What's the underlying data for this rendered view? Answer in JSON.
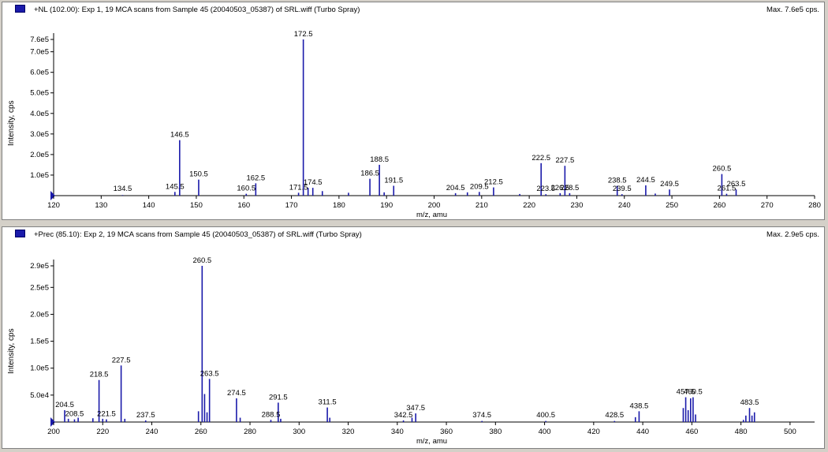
{
  "chart_data": [
    {
      "type": "bar",
      "title": "+NL (102.00): Exp 1, 19 MCA scans from Sample 45 (20040503_05387) of SRL.wiff (Turbo Spray)",
      "max_label": "Max. 7.6e5 cps.",
      "xlabel": "m/z, amu",
      "ylabel": "Intensity, cps",
      "xlim": [
        120,
        280
      ],
      "ylim": [
        0,
        760000
      ],
      "x_ticks": [
        120,
        130,
        140,
        150,
        160,
        170,
        180,
        190,
        200,
        210,
        220,
        230,
        240,
        250,
        260,
        270,
        280
      ],
      "y_ticks": [
        {
          "v": 100000,
          "label": "1.0e5"
        },
        {
          "v": 200000,
          "label": "2.0e5"
        },
        {
          "v": 300000,
          "label": "3.0e5"
        },
        {
          "v": 400000,
          "label": "4.0e5"
        },
        {
          "v": 500000,
          "label": "5.0e5"
        },
        {
          "v": 600000,
          "label": "6.0e5"
        },
        {
          "v": 700000,
          "label": "7.0e5"
        },
        {
          "v": 760000,
          "label": "7.6e5"
        }
      ],
      "series": [
        {
          "x": [
            134.5,
            145.5,
            146.5,
            150.5,
            160.5,
            162.5,
            171.5,
            172.5,
            173.5,
            174.5,
            176.5,
            182,
            186.5,
            188.5,
            189.5,
            191.5,
            204.5,
            207,
            209.5,
            212.5,
            218,
            222.5,
            223.5,
            226.5,
            227.5,
            228.5,
            238.5,
            239.5,
            244.5,
            246.5,
            249.5,
            260.5,
            261.5,
            263.5
          ],
          "values": [
            3000,
            18000,
            270000,
            78000,
            9000,
            60000,
            14000,
            760000,
            38000,
            38000,
            22000,
            14000,
            82000,
            150000,
            16000,
            48000,
            12000,
            16000,
            18000,
            40000,
            8000,
            158000,
            7000,
            12000,
            145000,
            12000,
            48000,
            7000,
            50000,
            10000,
            30000,
            105000,
            9000,
            30000
          ]
        }
      ],
      "labels": [
        {
          "x": 134.5,
          "text": "134.5"
        },
        {
          "x": 145.5,
          "text": "145.5"
        },
        {
          "x": 146.5,
          "text": "146.5"
        },
        {
          "x": 150.5,
          "text": "150.5"
        },
        {
          "x": 160.5,
          "text": "160.5"
        },
        {
          "x": 162.5,
          "text": "162.5"
        },
        {
          "x": 171.5,
          "text": "171.5"
        },
        {
          "x": 172.5,
          "text": "172.5"
        },
        {
          "x": 174.5,
          "text": "174.5"
        },
        {
          "x": 186.5,
          "text": "186.5"
        },
        {
          "x": 188.5,
          "text": "188.5"
        },
        {
          "x": 191.5,
          "text": "191.5"
        },
        {
          "x": 204.5,
          "text": "204.5"
        },
        {
          "x": 209.5,
          "text": "209.5"
        },
        {
          "x": 212.5,
          "text": "212.5"
        },
        {
          "x": 222.5,
          "text": "222.5"
        },
        {
          "x": 223.5,
          "text": "223.5"
        },
        {
          "x": 226.5,
          "text": "226.5"
        },
        {
          "x": 227.5,
          "text": "227.5"
        },
        {
          "x": 228.5,
          "text": "228.5"
        },
        {
          "x": 238.5,
          "text": "238.5"
        },
        {
          "x": 239.5,
          "text": "239.5"
        },
        {
          "x": 244.5,
          "text": "244.5"
        },
        {
          "x": 249.5,
          "text": "249.5"
        },
        {
          "x": 260.5,
          "text": "260.5"
        },
        {
          "x": 261.5,
          "text": "261.5"
        },
        {
          "x": 263.5,
          "text": "263.5"
        }
      ]
    },
    {
      "type": "bar",
      "title": "+Prec (85.10): Exp 2, 19 MCA scans from Sample 45 (20040503_05387) of SRL.wiff (Turbo Spray)",
      "max_label": "Max. 2.9e5 cps.",
      "xlabel": "m/z, amu",
      "ylabel": "Intensity, cps",
      "xlim": [
        200,
        510
      ],
      "ylim": [
        0,
        290000
      ],
      "x_ticks": [
        200,
        220,
        240,
        260,
        280,
        300,
        320,
        340,
        360,
        380,
        400,
        420,
        440,
        460,
        480,
        500
      ],
      "y_ticks": [
        {
          "v": 50000,
          "label": "5.0e4"
        },
        {
          "v": 100000,
          "label": "1.0e5"
        },
        {
          "v": 150000,
          "label": "1.5e5"
        },
        {
          "v": 200000,
          "label": "2.0e5"
        },
        {
          "v": 250000,
          "label": "2.5e5"
        },
        {
          "v": 290000,
          "label": "2.9e5"
        }
      ],
      "series": [
        {
          "x": [
            204.5,
            206,
            208.5,
            210,
            216,
            218.5,
            220,
            221.5,
            227.5,
            229,
            237.5,
            259,
            260.5,
            261.5,
            262.5,
            263.5,
            274.5,
            276,
            288.5,
            291.5,
            292.5,
            311.5,
            312.5,
            342.5,
            346,
            347.5,
            374.5,
            400.5,
            428.5,
            437,
            438.5,
            456.5,
            457.5,
            458.5,
            459.5,
            460.5,
            461.5,
            481,
            482,
            483.5,
            484.5,
            485.5
          ],
          "values": [
            22000,
            6000,
            5000,
            8000,
            7000,
            78000,
            6000,
            5000,
            105000,
            6000,
            3000,
            20000,
            290000,
            52000,
            18000,
            80000,
            44000,
            8000,
            4000,
            36000,
            6000,
            27000,
            8000,
            3000,
            8000,
            16000,
            2000,
            2000,
            2000,
            9000,
            20000,
            26000,
            46000,
            22000,
            44000,
            46000,
            14000,
            4000,
            12000,
            26000,
            12000,
            18000
          ]
        }
      ],
      "labels": [
        {
          "x": 204.5,
          "text": "204.5"
        },
        {
          "x": 208.5,
          "text": "208.5"
        },
        {
          "x": 218.5,
          "text": "218.5"
        },
        {
          "x": 221.5,
          "text": "221.5"
        },
        {
          "x": 227.5,
          "text": "227.5"
        },
        {
          "x": 237.5,
          "text": "237.5"
        },
        {
          "x": 260.5,
          "text": "260.5"
        },
        {
          "x": 263.5,
          "text": "263.5"
        },
        {
          "x": 274.5,
          "text": "274.5"
        },
        {
          "x": 288.5,
          "text": "288.5"
        },
        {
          "x": 291.5,
          "text": "291.5"
        },
        {
          "x": 311.5,
          "text": "311.5"
        },
        {
          "x": 342.5,
          "text": "342.5"
        },
        {
          "x": 347.5,
          "text": "347.5"
        },
        {
          "x": 374.5,
          "text": "374.5"
        },
        {
          "x": 400.5,
          "text": "400.5"
        },
        {
          "x": 428.5,
          "text": "428.5"
        },
        {
          "x": 438.5,
          "text": "438.5"
        },
        {
          "x": 457.5,
          "text": "457.5"
        },
        {
          "x": 460.5,
          "text": "460.5"
        },
        {
          "x": 483.5,
          "text": "483.5"
        }
      ]
    }
  ]
}
